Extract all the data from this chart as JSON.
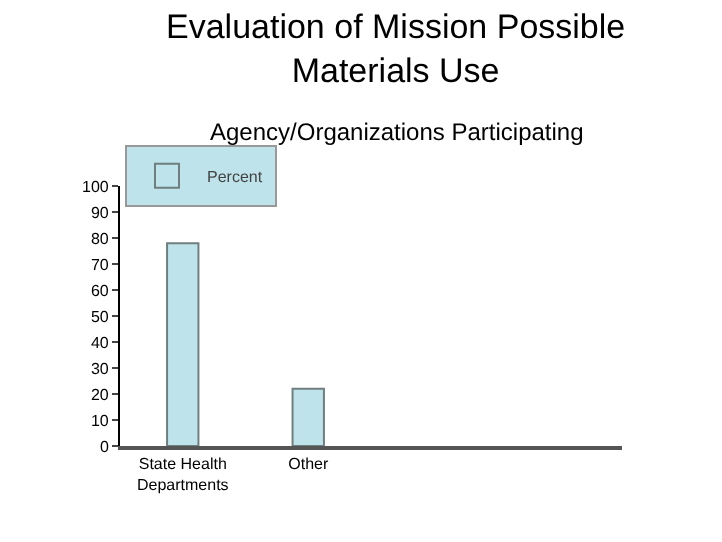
{
  "chart_data": {
    "type": "bar",
    "title": "Evaluation of Mission Possible Materials Use",
    "subtitle": "Agency/Organizations Participating",
    "categories": [
      "State Health Departments",
      "Other",
      null,
      null
    ],
    "series": [
      {
        "name": "Percent",
        "color": "#bfe3ea",
        "values": [
          78,
          22,
          null,
          null
        ]
      }
    ],
    "ylim": [
      0,
      100
    ],
    "yticks": [
      0,
      10,
      20,
      30,
      40,
      50,
      60,
      70,
      80,
      90,
      100
    ],
    "grid": false,
    "legend": "top left"
  }
}
